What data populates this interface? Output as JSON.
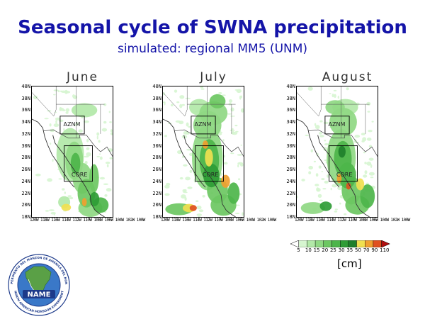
{
  "title": "Seasonal cycle of SWNA precipitation",
  "subtitle": "simulated: regional MM5 (UNM)",
  "units": "[cm]",
  "panels": [
    {
      "month": "June",
      "intensity": 1.0
    },
    {
      "month": "July",
      "intensity": 1.6
    },
    {
      "month": "August",
      "intensity": 1.4
    }
  ],
  "lat_labels": [
    "40N",
    "38N",
    "36N",
    "34N",
    "32N",
    "30N",
    "28N",
    "26N",
    "24N",
    "22N",
    "20N",
    "18N"
  ],
  "lon_labels": "120W 118W 116W 114W 112W 110W 108W 106W 104W 102W 100W",
  "regions": {
    "north": "AZNM",
    "south": "CORE"
  },
  "colorbar": {
    "levels": [
      "5",
      "10",
      "15",
      "20",
      "25",
      "30",
      "35",
      "50",
      "70",
      "90",
      "110"
    ],
    "colors": [
      "#ffffff",
      "#d6f5d0",
      "#b2e8a8",
      "#8fd883",
      "#6cc762",
      "#4db54a",
      "#2f9c36",
      "#1f7f2b",
      "#f0e050",
      "#f0a030",
      "#e05020",
      "#b01010"
    ]
  },
  "logo": {
    "center_text": "NAME",
    "ring_top": "EXPERIMENTO DEL MONZON DE AMERICA DEL NORTE",
    "ring_bottom": "NORTH AMERICAN MONSOON EXPERIMENT"
  }
}
